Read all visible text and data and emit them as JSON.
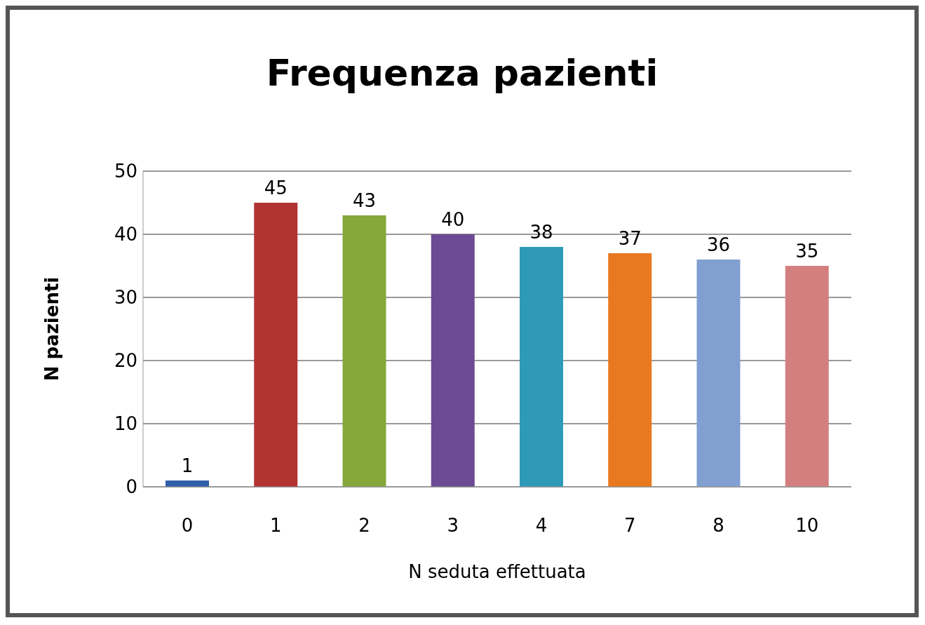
{
  "chart_data": {
    "type": "bar",
    "title": "Frequenza pazienti",
    "xlabel": "N seduta effettuata",
    "ylabel": "N pazienti",
    "categories": [
      "0",
      "1",
      "2",
      "3",
      "4",
      "7",
      "8",
      "10"
    ],
    "values": [
      1,
      45,
      43,
      40,
      38,
      37,
      36,
      35
    ],
    "colors": [
      "#2e5fa8",
      "#b33333",
      "#86a83a",
      "#6c4a94",
      "#2f9ab8",
      "#e8791f",
      "#819fd0",
      "#d47f7f"
    ],
    "ylim": [
      0,
      50
    ],
    "yticks": [
      0,
      10,
      20,
      30,
      40,
      50
    ],
    "grid": "y",
    "data_labels": true
  }
}
